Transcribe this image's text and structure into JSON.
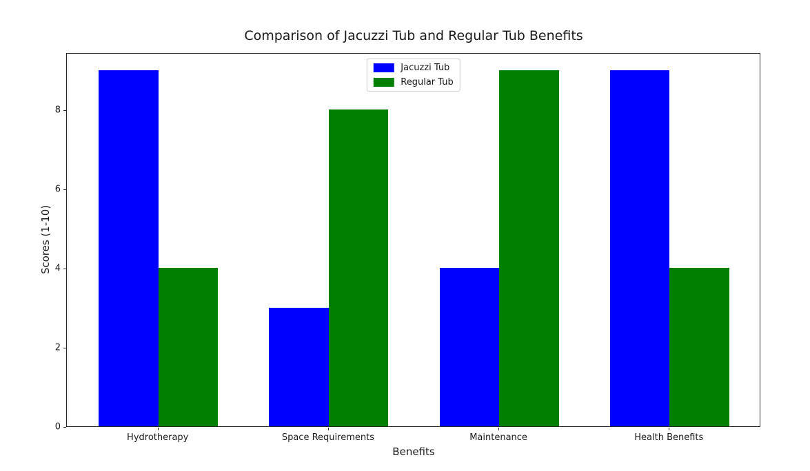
{
  "chart_data": {
    "type": "bar",
    "title": "Comparison of Jacuzzi Tub and Regular Tub Benefits",
    "xlabel": "Benefits",
    "ylabel": "Scores (1-10)",
    "categories": [
      "Hydrotherapy",
      "Space Requirements",
      "Maintenance",
      "Health Benefits"
    ],
    "series": [
      {
        "name": "Jacuzzi Tub",
        "color": "#0000ff",
        "values": [
          9,
          3,
          4,
          9
        ]
      },
      {
        "name": "Regular Tub",
        "color": "#008000",
        "values": [
          4,
          8,
          9,
          4
        ]
      }
    ],
    "ylim": [
      0,
      9.45
    ],
    "yticks": [
      0,
      2,
      4,
      6,
      8
    ],
    "xlim": [
      -0.537,
      3.537
    ],
    "bar_width_units": 0.35,
    "legend_position": "upper center",
    "grid": false,
    "background_color": "#ffffff",
    "spine_color": "#262626"
  }
}
